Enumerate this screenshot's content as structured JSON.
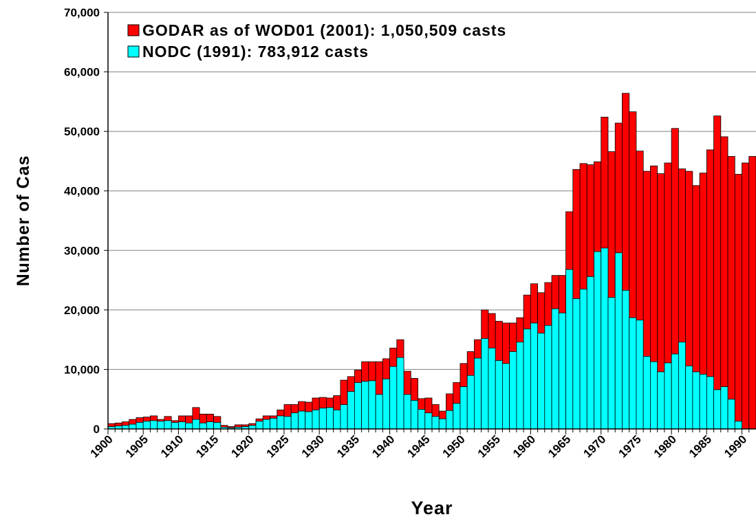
{
  "chart_data": {
    "type": "bar",
    "mode": "overlap",
    "y_label": "Number of Cas",
    "x_label": "Year",
    "legend": "top-left",
    "grid": true,
    "categories": [
      "1900",
      null,
      null,
      null,
      null,
      "1905",
      null,
      null,
      null,
      null,
      "1910",
      null,
      null,
      null,
      null,
      "1915",
      null,
      null,
      null,
      null,
      "1920",
      null,
      null,
      null,
      null,
      "1925",
      null,
      null,
      null,
      null,
      "1930",
      null,
      null,
      null,
      null,
      "1935",
      null,
      null,
      null,
      null,
      "1940",
      null,
      null,
      null,
      null,
      "1945",
      null,
      null,
      null,
      null,
      "1950",
      null,
      null,
      null,
      null,
      "1955",
      null,
      null,
      null,
      null,
      "1960",
      null,
      null,
      null,
      null,
      "1965",
      null,
      null,
      null,
      null,
      "1970",
      null,
      null,
      null,
      null,
      "1975",
      null,
      null,
      null,
      null,
      "1980",
      null,
      null,
      null,
      null,
      "1985",
      null,
      null,
      null,
      null,
      "1990",
      null
    ],
    "series": [
      {
        "name": "GODAR as of WOD01 (2001): 1,050,509 casts",
        "color": "#ff0000",
        "values": [
          900,
          1000,
          1200,
          1600,
          1900,
          2000,
          2200,
          1600,
          2100,
          1400,
          2200,
          2200,
          3600,
          2500,
          2500,
          2100,
          600,
          400,
          700,
          700,
          900,
          1700,
          2200,
          2200,
          3200,
          4100,
          4100,
          4600,
          4500,
          5200,
          5300,
          5200,
          5600,
          8200,
          8800,
          9900,
          11300,
          11300,
          11300,
          11800,
          13600,
          15000,
          9700,
          8500,
          5100,
          5200,
          4100,
          3000,
          5900,
          7800,
          11000,
          13000,
          15000,
          20000,
          19400,
          18100,
          17800,
          17800,
          18700,
          22500,
          24400,
          22900,
          24600,
          25800,
          25800,
          36500,
          43600,
          44600,
          44400,
          44900,
          52400,
          46600,
          51400,
          56400,
          53300,
          46700,
          43300,
          44200,
          42900,
          44700,
          50500,
          43700,
          43300,
          40900,
          43000,
          46900,
          52600,
          49100,
          45800,
          42800,
          44700,
          45800
        ]
      },
      {
        "name": "NODC (1991): 783,912 casts",
        "color": "#00ffff",
        "values": [
          400,
          500,
          600,
          800,
          1100,
          1300,
          1400,
          1300,
          1400,
          1100,
          1200,
          1000,
          1600,
          1000,
          1200,
          1100,
          300,
          200,
          300,
          400,
          600,
          1300,
          1600,
          1800,
          2200,
          2100,
          2700,
          3000,
          2900,
          3200,
          3500,
          3600,
          3200,
          4100,
          6300,
          7800,
          8000,
          8100,
          5800,
          8400,
          10500,
          12000,
          5800,
          4800,
          3300,
          2700,
          2100,
          1700,
          3100,
          4300,
          7100,
          9000,
          11900,
          15200,
          13600,
          11500,
          11000,
          13000,
          14600,
          16800,
          17800,
          16100,
          17400,
          20200,
          19500,
          26800,
          21900,
          23500,
          25600,
          29800,
          30400,
          22100,
          29600,
          23300,
          18700,
          18300,
          12200,
          11300,
          9600,
          11100,
          12600,
          14600,
          10600,
          9600,
          9200,
          8800,
          6600,
          7100,
          5000,
          1300,
          0,
          0
        ]
      }
    ],
    "ylim": [
      0,
      70000
    ],
    "yticks": [
      0,
      {
        "value": 10000,
        "label": "10,000"
      },
      {
        "value": 20000,
        "label": "20,000"
      },
      {
        "value": 30000,
        "label": "30,000"
      },
      {
        "value": 40000,
        "label": "40,000"
      },
      {
        "value": 50000,
        "label": "50,000"
      },
      {
        "value": 60000,
        "label": "60,000"
      },
      {
        "value": 70000,
        "label": "70,000"
      }
    ]
  }
}
